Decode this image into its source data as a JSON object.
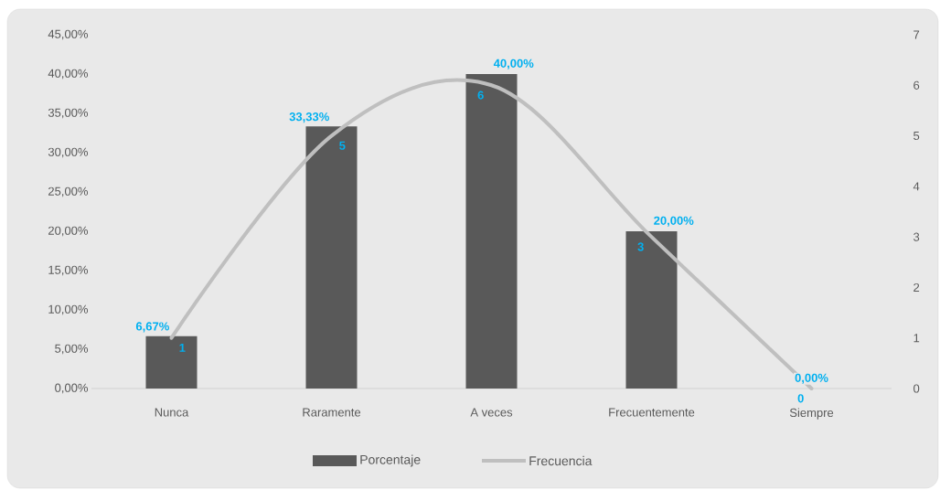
{
  "chart_data": {
    "type": "bar",
    "categories": [
      "Nunca",
      "Raramente",
      "A veces",
      "Frecuentemente",
      "Siempre"
    ],
    "series": [
      {
        "name": "Porcentaje",
        "color": "#595959",
        "values": [
          6.67,
          33.33,
          40.0,
          20.0,
          0.0
        ],
        "value_labels": [
          "6,67%",
          "33,33%",
          "40,00%",
          "20,00%",
          "0,00%"
        ]
      },
      {
        "name": "Frecuencia",
        "type": "line",
        "axis": "y2",
        "color": "#bfbfbf",
        "values": [
          1,
          5,
          6,
          3,
          0
        ],
        "value_labels": [
          "1",
          "5",
          "6",
          "3",
          "0"
        ]
      }
    ],
    "ylim": [
      0,
      45
    ],
    "yticks": [
      {
        "value": 0,
        "label": "0,00%"
      },
      {
        "value": 5,
        "label": "5,00%"
      },
      {
        "value": 10,
        "label": "10,00%"
      },
      {
        "value": 15,
        "label": "15,00%"
      },
      {
        "value": 20,
        "label": "20,00%"
      },
      {
        "value": 25,
        "label": "25,00%"
      },
      {
        "value": 30,
        "label": "30,00%"
      },
      {
        "value": 35,
        "label": "35,00%"
      },
      {
        "value": 40,
        "label": "40,00%"
      },
      {
        "value": 45,
        "label": "45,00%"
      }
    ],
    "y2lim": [
      0,
      7
    ],
    "y2ticks": [
      0,
      1,
      2,
      3,
      4,
      5,
      6,
      7
    ],
    "legend": "bottom"
  }
}
